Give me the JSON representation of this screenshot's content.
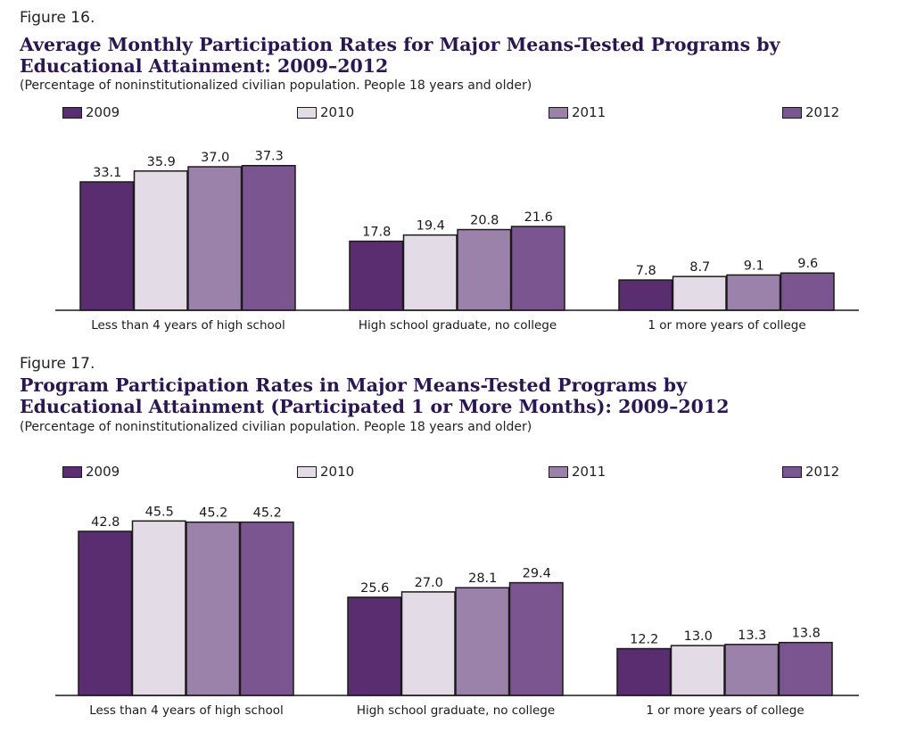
{
  "chart_data": [
    {
      "type": "bar",
      "figure_label": "Figure 16.",
      "title": "Average Monthly Participation Rates for Major Means-Tested Programs by Educational Attainment: 2009–2012",
      "subtitle": "(Percentage of noninstitutionalized civilian population. People 18 years and older)",
      "categories": [
        "Less than 4 years of high school",
        "High school graduate, no college",
        "1 or more years of college"
      ],
      "series": [
        {
          "name": "2009",
          "values": [
            33.1,
            17.8,
            7.8
          ]
        },
        {
          "name": "2010",
          "values": [
            35.9,
            19.4,
            8.7
          ]
        },
        {
          "name": "2011",
          "values": [
            37.0,
            20.8,
            9.1
          ]
        },
        {
          "name": "2012",
          "values": [
            37.3,
            21.6,
            9.6
          ]
        }
      ],
      "ylim": [
        0,
        40
      ],
      "grid": false,
      "legend_position": "top"
    },
    {
      "type": "bar",
      "figure_label": "Figure 17.",
      "title": "Program Participation Rates in Major Means-Tested Programs by Educational Attainment (Participated 1 or More Months): 2009–2012",
      "subtitle": "(Percentage of noninstitutionalized civilian population. People 18 years and older)",
      "categories": [
        "Less than 4 years of high school",
        "High school graduate, no college",
        "1 or more years of college"
      ],
      "series": [
        {
          "name": "2009",
          "values": [
            42.8,
            25.6,
            12.2
          ]
        },
        {
          "name": "2010",
          "values": [
            45.5,
            27.0,
            13.0
          ]
        },
        {
          "name": "2011",
          "values": [
            45.2,
            28.1,
            13.3
          ]
        },
        {
          "name": "2012",
          "values": [
            45.2,
            29.4,
            13.8
          ]
        }
      ],
      "ylim": [
        0,
        48
      ],
      "grid": false,
      "legend_position": "top"
    }
  ],
  "colors": {
    "2009": "#5a2c70",
    "2010": "#e3dbe6",
    "2011": "#9b82ab",
    "2012": "#7a5590",
    "title": "#2a1650"
  }
}
